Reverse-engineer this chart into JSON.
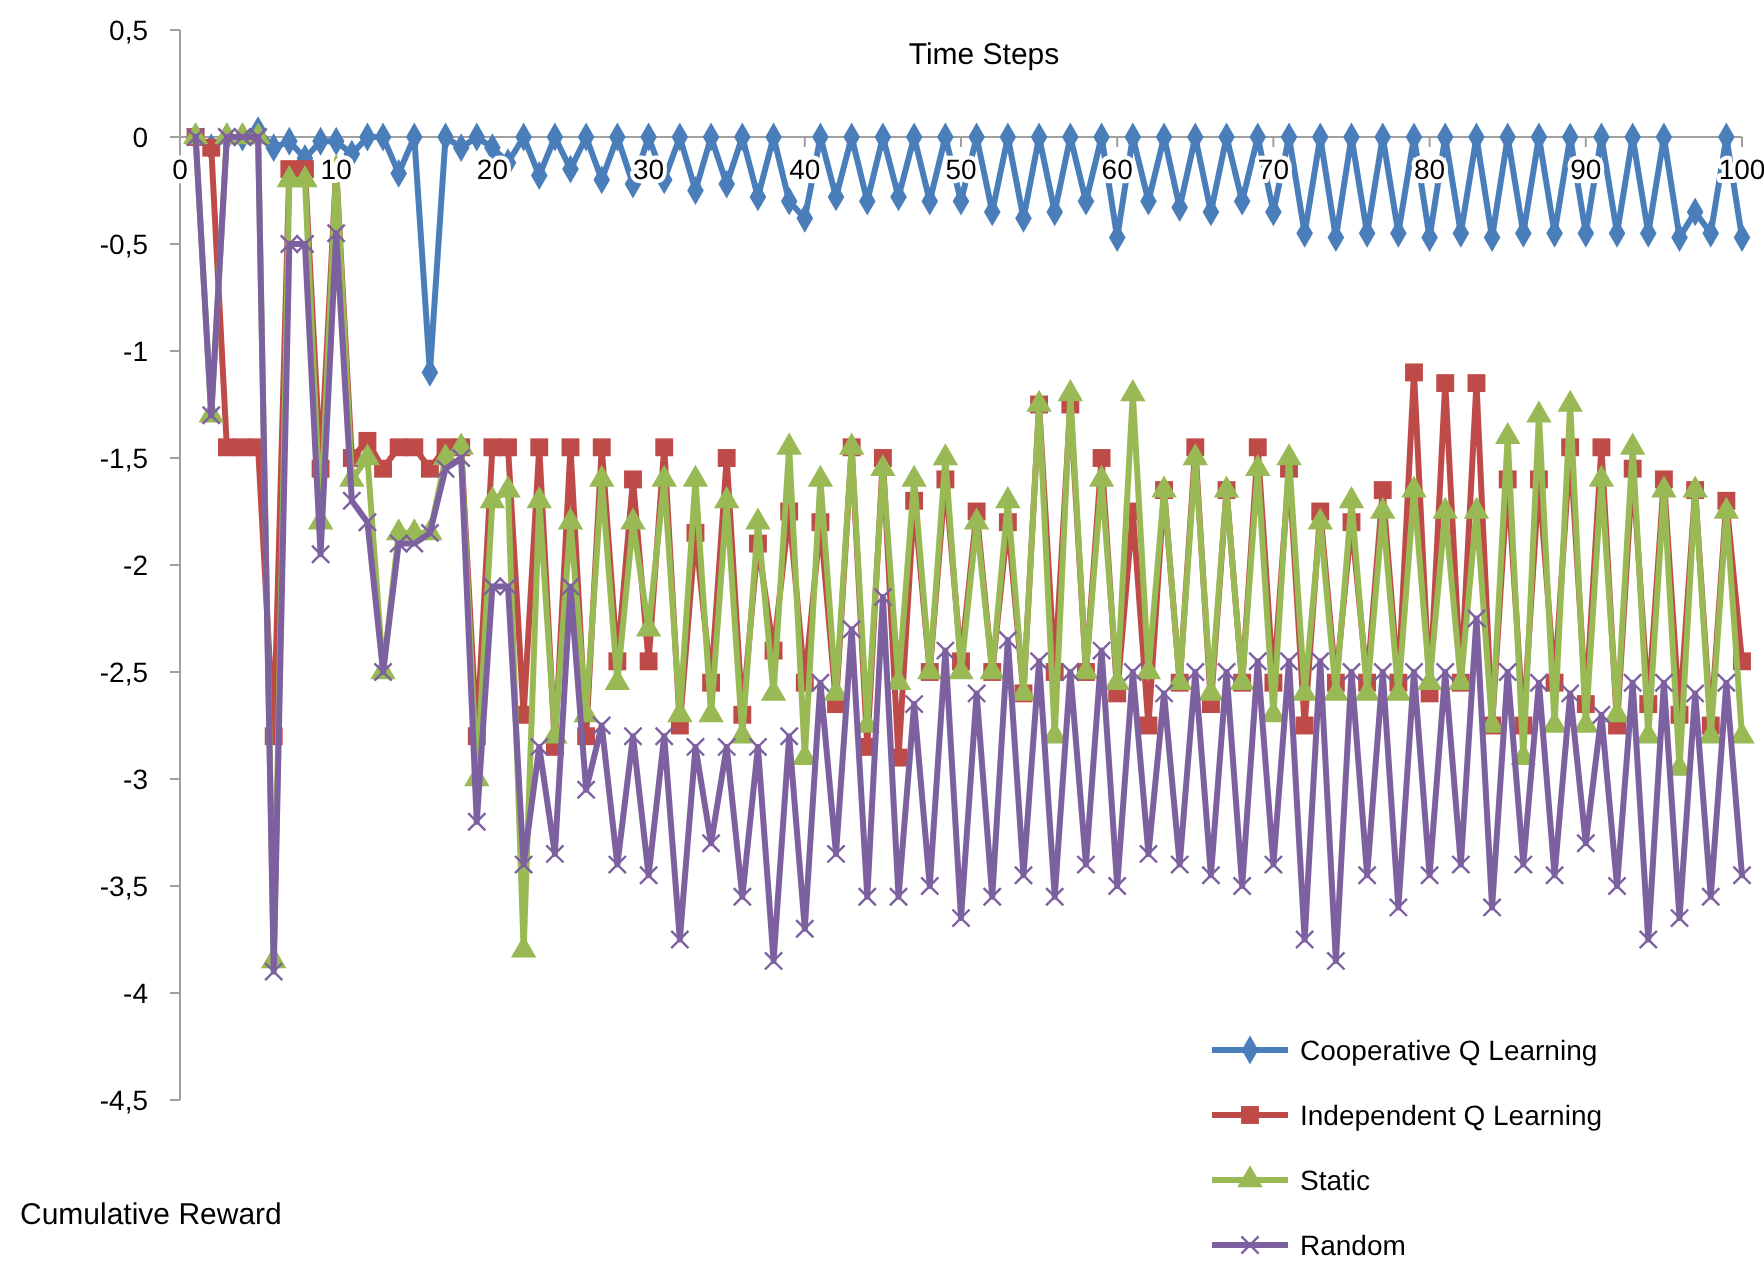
{
  "chart_data": {
    "type": "line",
    "xlabel": "Time Steps",
    "ylabel": "Cumulative Reward",
    "xlim": [
      0,
      100
    ],
    "xticks": [
      0,
      10,
      20,
      30,
      40,
      50,
      60,
      70,
      80,
      90,
      100
    ],
    "ylim": [
      -4.5,
      0.5
    ],
    "yticks": [
      {
        "value": -4.5,
        "label": "-4,5"
      },
      {
        "value": -4,
        "label": "-4"
      },
      {
        "value": -3.5,
        "label": "-3,5"
      },
      {
        "value": -3,
        "label": "-3"
      },
      {
        "value": -2.5,
        "label": "-2,5"
      },
      {
        "value": -2,
        "label": "-2"
      },
      {
        "value": -1.5,
        "label": "-1,5"
      },
      {
        "value": -1,
        "label": "-1"
      },
      {
        "value": -0.5,
        "label": "-0,5"
      },
      {
        "value": 0,
        "label": "0"
      },
      {
        "value": 0.5,
        "label": "0,5"
      }
    ],
    "grid": false,
    "legend": "bottom right",
    "x": [
      1,
      2,
      3,
      4,
      5,
      6,
      7,
      8,
      9,
      10,
      11,
      12,
      13,
      14,
      15,
      16,
      17,
      18,
      19,
      20,
      21,
      22,
      23,
      24,
      25,
      26,
      27,
      28,
      29,
      30,
      31,
      32,
      33,
      34,
      35,
      36,
      37,
      38,
      39,
      40,
      41,
      42,
      43,
      44,
      45,
      46,
      47,
      48,
      49,
      50,
      51,
      52,
      53,
      54,
      55,
      56,
      57,
      58,
      59,
      60,
      61,
      62,
      63,
      64,
      65,
      66,
      67,
      68,
      69,
      70,
      71,
      72,
      73,
      74,
      75,
      76,
      77,
      78,
      79,
      80,
      81,
      82,
      83,
      84,
      85,
      86,
      87,
      88,
      89,
      90,
      91,
      92,
      93,
      94,
      95,
      96,
      97,
      98,
      99,
      100
    ],
    "series": [
      {
        "name": "Cooperative Q Learning",
        "color": "#4a7ebb",
        "marker": "diamond",
        "values": [
          0,
          -0.05,
          0,
          0,
          0.03,
          -0.05,
          -0.02,
          -0.1,
          -0.02,
          -0.02,
          -0.08,
          0,
          0,
          -0.17,
          0,
          -1.1,
          0,
          -0.05,
          0,
          -0.05,
          -0.12,
          0,
          -0.18,
          0,
          -0.15,
          0,
          -0.2,
          0,
          -0.22,
          0,
          -0.2,
          0,
          -0.25,
          0,
          -0.22,
          0,
          -0.28,
          0,
          -0.3,
          -0.38,
          0,
          -0.28,
          0,
          -0.3,
          0,
          -0.28,
          0,
          -0.3,
          0,
          -0.3,
          0,
          -0.35,
          0,
          -0.38,
          0,
          -0.35,
          0,
          -0.3,
          0,
          -0.47,
          0,
          -0.3,
          0,
          -0.33,
          0,
          -0.35,
          0,
          -0.3,
          0,
          -0.35,
          0,
          -0.45,
          0,
          -0.47,
          0,
          -0.45,
          0,
          -0.45,
          0,
          -0.47,
          0,
          -0.45,
          0,
          -0.47,
          0,
          -0.45,
          0,
          -0.45,
          0,
          -0.45,
          0,
          -0.45,
          0,
          -0.45,
          0,
          -0.47,
          -0.35,
          -0.45,
          0,
          -0.47
        ]
      },
      {
        "name": "Independent Q Learning",
        "color": "#be4b48",
        "marker": "square",
        "values": [
          0,
          -0.05,
          -1.45,
          -1.45,
          -1.45,
          -2.8,
          -0.15,
          -0.15,
          -1.55,
          -0.15,
          -1.5,
          -1.42,
          -1.55,
          -1.45,
          -1.45,
          -1.55,
          -1.45,
          -1.45,
          -2.8,
          -1.45,
          -1.45,
          -2.7,
          -1.45,
          -2.85,
          -1.45,
          -2.8,
          -1.45,
          -2.45,
          -1.6,
          -2.45,
          -1.45,
          -2.75,
          -1.85,
          -2.55,
          -1.5,
          -2.7,
          -1.9,
          -2.4,
          -1.75,
          -2.55,
          -1.8,
          -2.65,
          -1.45,
          -2.85,
          -1.5,
          -2.9,
          -1.7,
          -2.5,
          -1.6,
          -2.45,
          -1.75,
          -2.5,
          -1.8,
          -2.6,
          -1.25,
          -2.5,
          -1.25,
          -2.5,
          -1.5,
          -2.6,
          -1.75,
          -2.75,
          -1.65,
          -2.55,
          -1.45,
          -2.65,
          -1.65,
          -2.55,
          -1.45,
          -2.55,
          -1.55,
          -2.75,
          -1.75,
          -2.55,
          -1.8,
          -2.55,
          -1.65,
          -2.55,
          -1.1,
          -2.6,
          -1.15,
          -2.55,
          -1.15,
          -2.75,
          -1.6,
          -2.75,
          -1.6,
          -2.55,
          -1.45,
          -2.65,
          -1.45,
          -2.75,
          -1.55,
          -2.65,
          -1.6,
          -2.7,
          -1.65,
          -2.75,
          -1.7,
          -2.45
        ]
      },
      {
        "name": "Static",
        "color": "#98b954",
        "marker": "triangle",
        "values": [
          0,
          -1.3,
          0,
          0,
          0,
          -3.85,
          -0.2,
          -0.2,
          -1.8,
          -0.15,
          -1.6,
          -1.5,
          -2.5,
          -1.85,
          -1.85,
          -1.85,
          -1.5,
          -1.45,
          -3,
          -1.7,
          -1.65,
          -3.8,
          -1.7,
          -2.8,
          -1.8,
          -2.7,
          -1.6,
          -2.55,
          -1.8,
          -2.3,
          -1.6,
          -2.7,
          -1.6,
          -2.7,
          -1.7,
          -2.8,
          -1.8,
          -2.6,
          -1.45,
          -2.9,
          -1.6,
          -2.6,
          -1.45,
          -2.75,
          -1.55,
          -2.55,
          -1.6,
          -2.5,
          -1.5,
          -2.5,
          -1.8,
          -2.5,
          -1.7,
          -2.6,
          -1.25,
          -2.8,
          -1.2,
          -2.5,
          -1.6,
          -2.55,
          -1.2,
          -2.5,
          -1.65,
          -2.55,
          -1.5,
          -2.6,
          -1.65,
          -2.55,
          -1.55,
          -2.7,
          -1.5,
          -2.6,
          -1.8,
          -2.6,
          -1.7,
          -2.6,
          -1.75,
          -2.6,
          -1.65,
          -2.55,
          -1.75,
          -2.55,
          -1.75,
          -2.75,
          -1.4,
          -2.9,
          -1.3,
          -2.75,
          -1.25,
          -2.75,
          -1.6,
          -2.7,
          -1.45,
          -2.8,
          -1.65,
          -2.95,
          -1.65,
          -2.8,
          -1.75,
          -2.8
        ]
      },
      {
        "name": "Random",
        "color": "#7d60a0",
        "marker": "cross",
        "values": [
          0,
          -1.3,
          0,
          0,
          0,
          -3.9,
          -0.5,
          -0.5,
          -1.95,
          -0.45,
          -1.7,
          -1.8,
          -2.5,
          -1.9,
          -1.9,
          -1.85,
          -1.55,
          -1.5,
          -3.2,
          -2.1,
          -2.1,
          -3.4,
          -2.85,
          -3.35,
          -2.1,
          -3.05,
          -2.75,
          -3.4,
          -2.8,
          -3.45,
          -2.8,
          -3.75,
          -2.85,
          -3.3,
          -2.85,
          -3.55,
          -2.85,
          -3.85,
          -2.8,
          -3.7,
          -2.55,
          -3.35,
          -2.3,
          -3.55,
          -2.15,
          -3.55,
          -2.65,
          -3.5,
          -2.4,
          -3.65,
          -2.6,
          -3.55,
          -2.35,
          -3.45,
          -2.45,
          -3.55,
          -2.5,
          -3.4,
          -2.4,
          -3.5,
          -2.5,
          -3.35,
          -2.6,
          -3.4,
          -2.5,
          -3.45,
          -2.5,
          -3.5,
          -2.45,
          -3.4,
          -2.45,
          -3.75,
          -2.45,
          -3.85,
          -2.5,
          -3.45,
          -2.5,
          -3.6,
          -2.5,
          -3.45,
          -2.5,
          -3.4,
          -2.25,
          -3.6,
          -2.5,
          -3.4,
          -2.55,
          -3.45,
          -2.6,
          -3.3,
          -2.7,
          -3.5,
          -2.55,
          -3.75,
          -2.55,
          -3.65,
          -2.6,
          -3.55,
          -2.55,
          -3.45
        ]
      }
    ]
  }
}
